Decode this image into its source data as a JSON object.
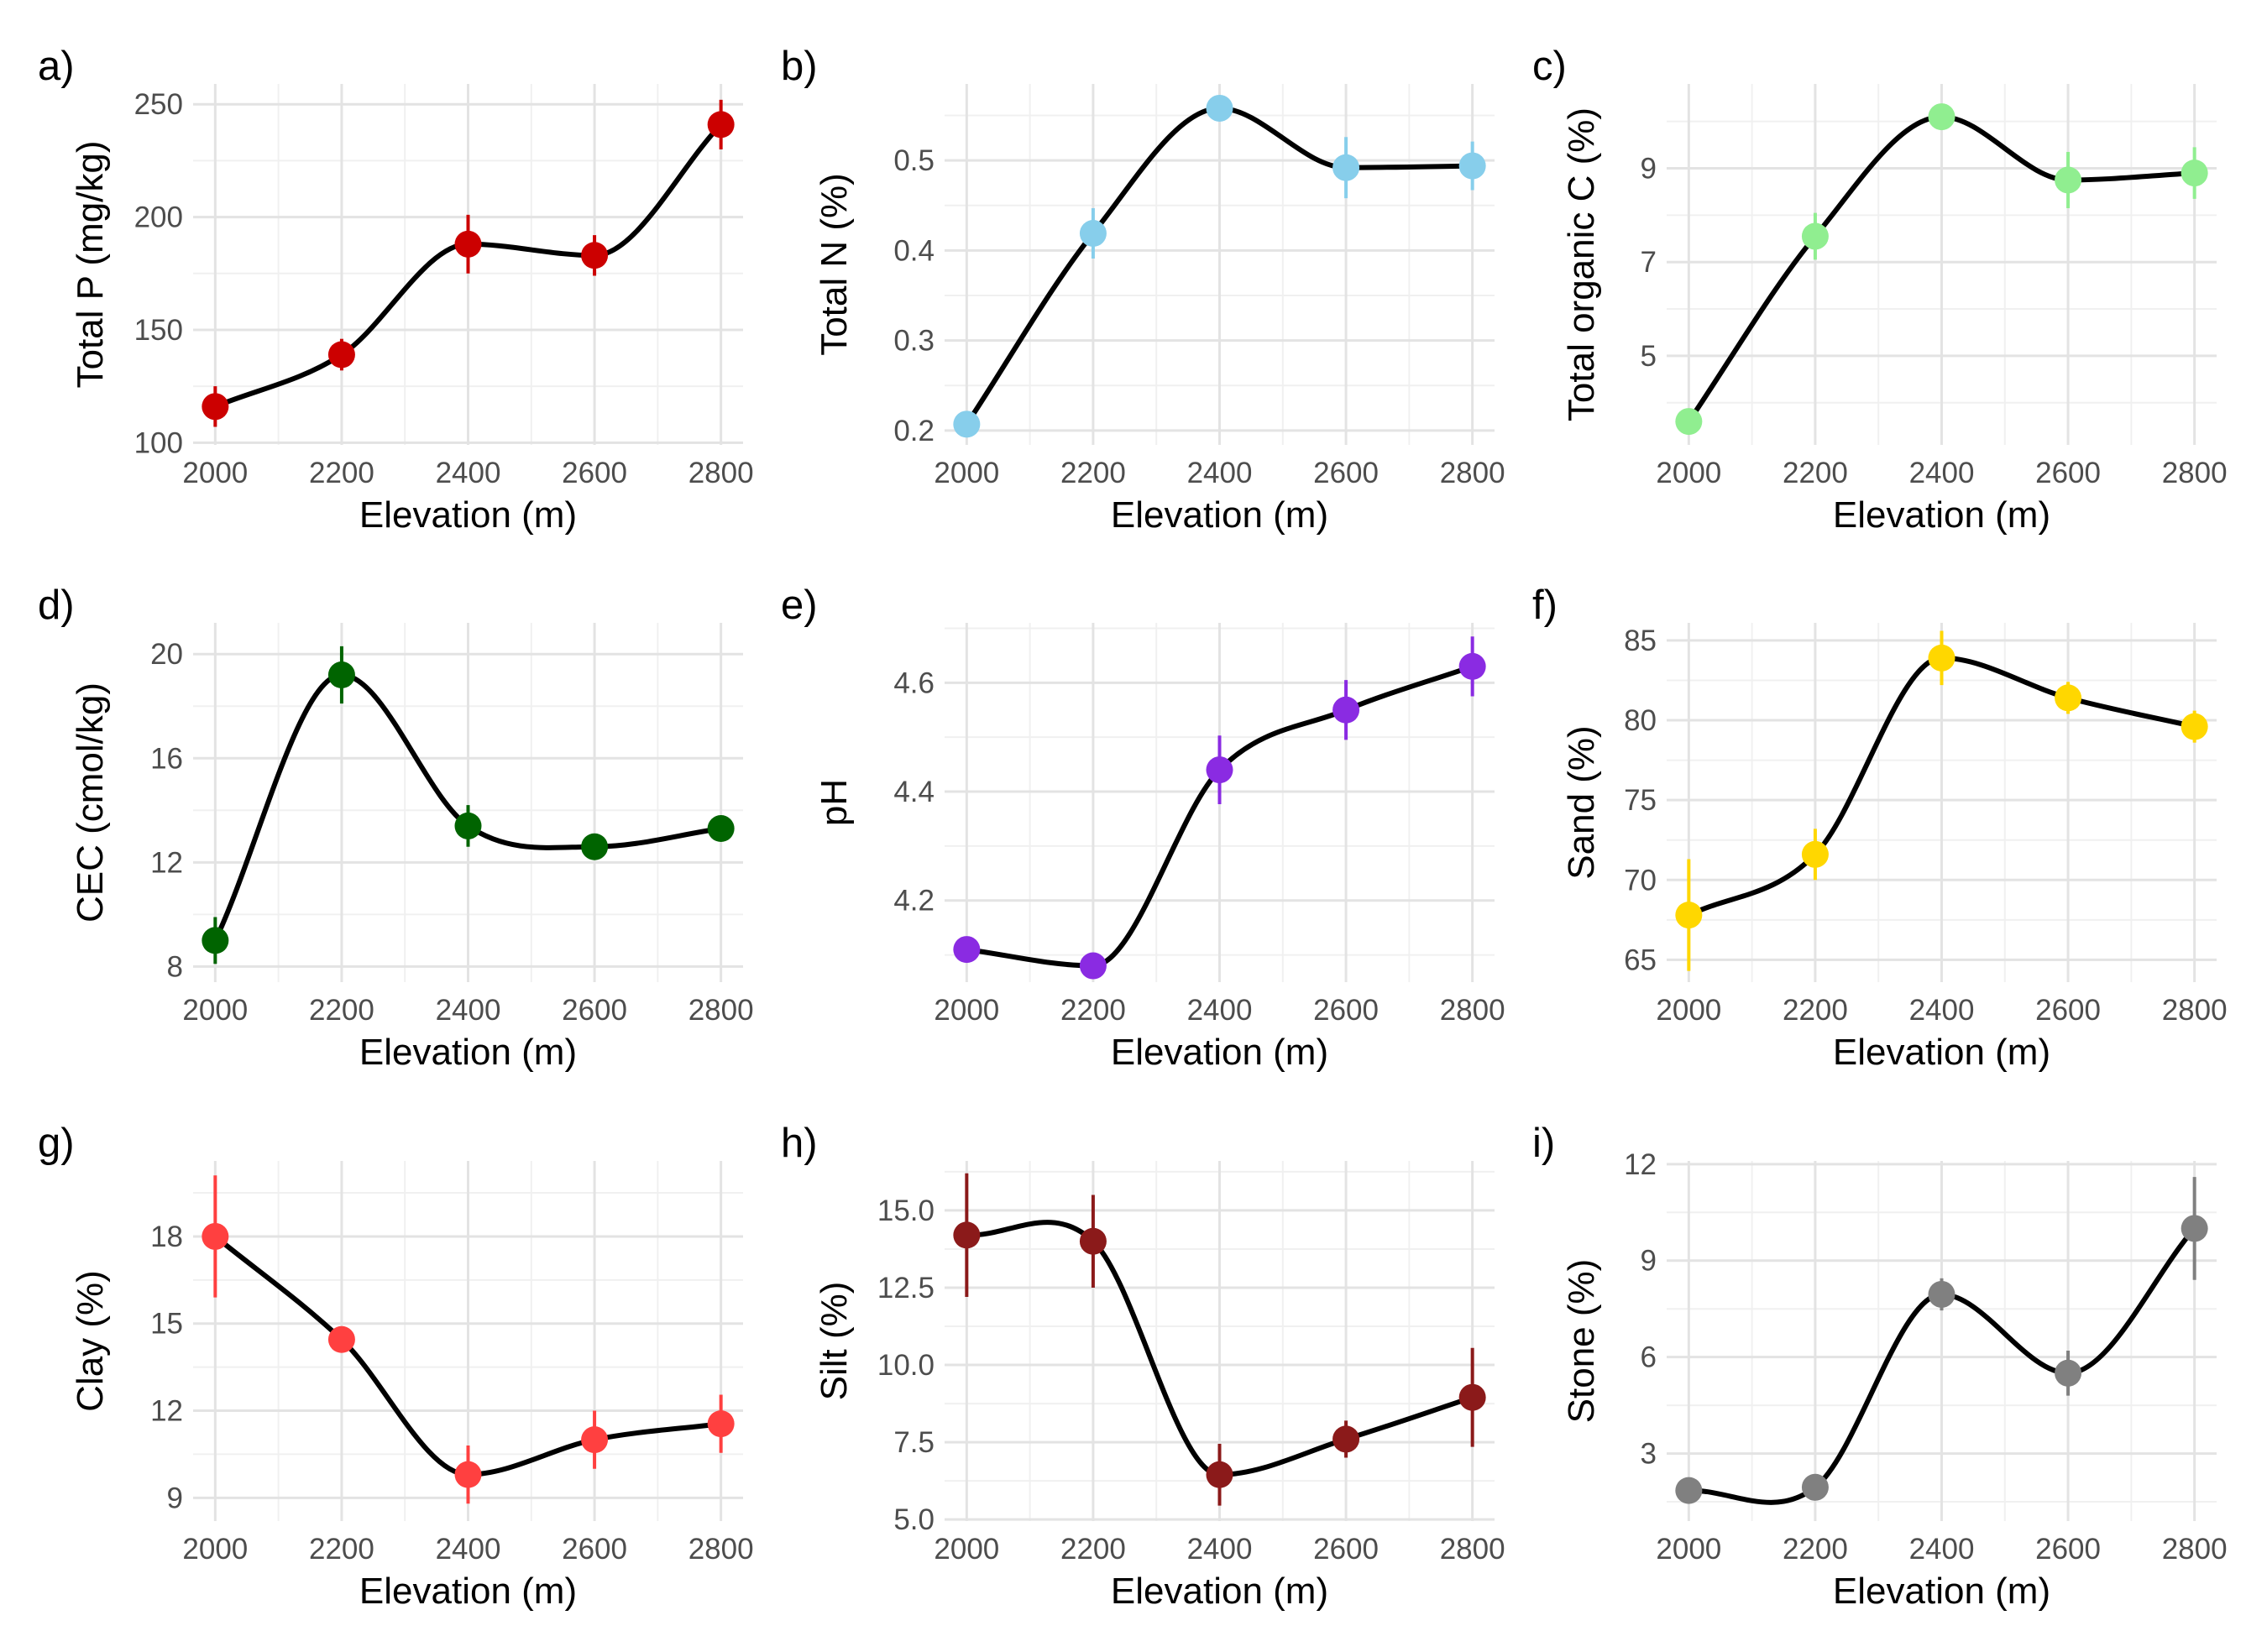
{
  "chart_data": [
    {
      "type": "line",
      "panel_label": "a)",
      "xlabel": "Elevation (m)",
      "ylabel": "Total P (mg/kg)",
      "color": "#CC0000",
      "x": [
        2000,
        2200,
        2400,
        2600,
        2800
      ],
      "y": [
        116,
        139,
        188,
        183,
        241
      ],
      "err": [
        9,
        7,
        13,
        9,
        11
      ],
      "xticks": [
        2000,
        2200,
        2400,
        2600,
        2800
      ],
      "yticks": [
        100,
        150,
        200,
        250
      ],
      "xlim": [
        1965,
        2835
      ],
      "ylim": [
        99,
        259
      ],
      "grid": true
    },
    {
      "type": "line",
      "panel_label": "b)",
      "xlabel": "Elevation (m)",
      "ylabel": "Total N (%)",
      "color": "#87CEEB",
      "x": [
        2000,
        2200,
        2400,
        2600,
        2800
      ],
      "y": [
        0.207,
        0.419,
        0.558,
        0.492,
        0.494
      ],
      "err": [
        0.007,
        0.028,
        0.006,
        0.034,
        0.027
      ],
      "xticks": [
        2000,
        2200,
        2400,
        2600,
        2800
      ],
      "yticks": [
        "0.2",
        "0.3",
        "0.4",
        "0.5"
      ],
      "xlim": [
        1965,
        2835
      ],
      "ylim": [
        0.184,
        0.585
      ],
      "grid": true
    },
    {
      "type": "line",
      "panel_label": "c)",
      "xlabel": "Elevation (m)",
      "ylabel": "Total organic C (%)",
      "color": "#90EE90",
      "x": [
        2000,
        2200,
        2400,
        2600,
        2800
      ],
      "y": [
        3.6,
        7.55,
        10.1,
        8.75,
        8.9
      ],
      "err": [
        0.1,
        0.5,
        0.15,
        0.6,
        0.55
      ],
      "xticks": [
        2000,
        2200,
        2400,
        2600,
        2800
      ],
      "yticks": [
        5,
        7,
        9
      ],
      "xlim": [
        1965,
        2835
      ],
      "ylim": [
        3.1,
        10.8
      ],
      "grid": true
    },
    {
      "type": "line",
      "panel_label": "d)",
      "xlabel": "Elevation (m)",
      "ylabel": "CEC (cmol/kg)",
      "color": "#006400",
      "x": [
        2000,
        2200,
        2400,
        2600,
        2800
      ],
      "y": [
        9.0,
        19.2,
        13.4,
        12.6,
        13.3
      ],
      "err": [
        0.9,
        1.1,
        0.8,
        0.3,
        0.3
      ],
      "xticks": [
        2000,
        2200,
        2400,
        2600,
        2800
      ],
      "yticks": [
        8,
        12,
        16,
        20
      ],
      "xlim": [
        1965,
        2835
      ],
      "ylim": [
        7.4,
        21.2
      ],
      "grid": true
    },
    {
      "type": "line",
      "panel_label": "e)",
      "xlabel": "Elevation (m)",
      "ylabel": "pH",
      "color": "#8A2BE2",
      "x": [
        2000,
        2200,
        2400,
        2600,
        2800
      ],
      "y": [
        4.11,
        4.08,
        4.44,
        4.55,
        4.63
      ],
      "err": [
        0.01,
        0.01,
        0.063,
        0.055,
        0.055
      ],
      "xticks": [
        2000,
        2200,
        2400,
        2600,
        2800
      ],
      "yticks": [
        "4.2",
        "4.4",
        "4.6"
      ],
      "xlim": [
        1965,
        2835
      ],
      "ylim": [
        4.05,
        4.71
      ],
      "grid": true
    },
    {
      "type": "line",
      "panel_label": "f)",
      "xlabel": "Elevation (m)",
      "ylabel": "Sand (%)",
      "color": "#FFD700",
      "x": [
        2000,
        2200,
        2400,
        2600,
        2800
      ],
      "y": [
        67.8,
        71.6,
        83.9,
        81.4,
        79.6
      ],
      "err": [
        3.5,
        1.6,
        1.7,
        1.0,
        1.0
      ],
      "xticks": [
        2000,
        2200,
        2400,
        2600,
        2800
      ],
      "yticks": [
        65,
        70,
        75,
        80,
        85
      ],
      "xlim": [
        1965,
        2835
      ],
      "ylim": [
        63.6,
        86.1
      ],
      "grid": true
    },
    {
      "type": "line",
      "panel_label": "g)",
      "xlabel": "Elevation (m)",
      "ylabel": "Clay (%)",
      "color": "#FF4040",
      "x": [
        2000,
        2200,
        2400,
        2600,
        2800
      ],
      "y": [
        18.0,
        14.45,
        9.8,
        11.0,
        11.55
      ],
      "err": [
        2.1,
        0.3,
        1.0,
        1.0,
        1.0
      ],
      "xticks": [
        2000,
        2200,
        2400,
        2600,
        2800
      ],
      "yticks": [
        9,
        12,
        15,
        18
      ],
      "xlim": [
        1965,
        2835
      ],
      "ylim": [
        8.2,
        20.6
      ],
      "grid": true
    },
    {
      "type": "line",
      "panel_label": "h)",
      "xlabel": "Elevation (m)",
      "ylabel": "Silt (%)",
      "color": "#8B1A1A",
      "x": [
        2000,
        2200,
        2400,
        2600,
        2800
      ],
      "y": [
        14.2,
        14.0,
        6.45,
        7.6,
        8.95
      ],
      "err": [
        2.0,
        1.5,
        1.0,
        0.6,
        1.6
      ],
      "xticks": [
        2000,
        2200,
        2400,
        2600,
        2800
      ],
      "yticks": [
        "5.0",
        "7.5",
        "10.0",
        "12.5",
        "15.0"
      ],
      "xlim": [
        1965,
        2835
      ],
      "ylim": [
        4.95,
        16.6
      ],
      "grid": true
    },
    {
      "type": "line",
      "panel_label": "i)",
      "xlabel": "Elevation (m)",
      "ylabel": "Stone (%)",
      "color": "#808080",
      "x": [
        2000,
        2200,
        2400,
        2600,
        2800
      ],
      "y": [
        1.85,
        1.95,
        7.95,
        5.5,
        10.0
      ],
      "err": [
        0.05,
        0.15,
        0.5,
        0.7,
        1.6
      ],
      "xticks": [
        2000,
        2200,
        2400,
        2600,
        2800
      ],
      "yticks": [
        3,
        6,
        9,
        12
      ],
      "xlim": [
        1965,
        2835
      ],
      "ylim": [
        0.9,
        12.1
      ],
      "grid": true
    }
  ]
}
